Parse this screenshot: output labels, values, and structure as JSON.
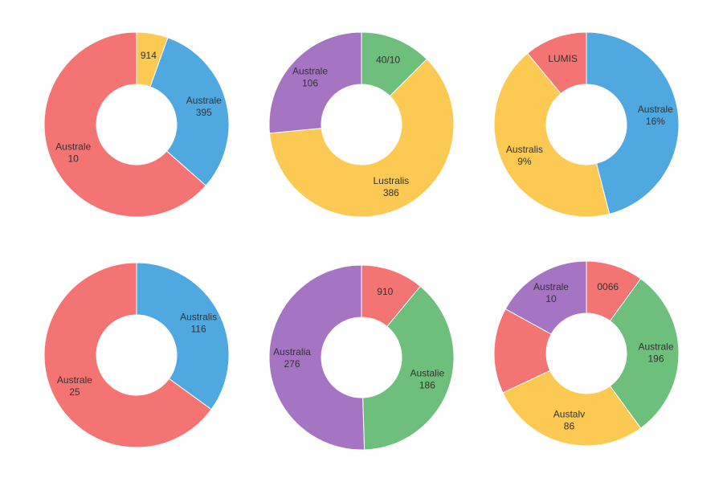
{
  "chart_data": [
    {
      "type": "donut",
      "values": [
        5.5,
        31,
        63.5
      ],
      "colors": [
        "#fcc953",
        "#4fa8e0",
        "#f47373"
      ],
      "labels": [
        [
          "914"
        ],
        [
          "Australe",
          "395"
        ],
        [
          "Australe",
          "10"
        ]
      ]
    },
    {
      "type": "donut",
      "values": [
        12.5,
        61,
        26.5
      ],
      "colors": [
        "#6dbf7b",
        "#fcc953",
        "#a574c2"
      ],
      "labels": [
        [
          "40/10"
        ],
        [
          "Lustralis",
          "386"
        ],
        [
          "Australe",
          "106"
        ]
      ]
    },
    {
      "type": "donut",
      "values": [
        46,
        43,
        11
      ],
      "colors": [
        "#4fa8e0",
        "#fcc953",
        "#f47373"
      ],
      "labels": [
        [
          "Australe",
          "16%"
        ],
        [
          "Australis",
          "9%"
        ],
        [
          "LUMIS"
        ]
      ]
    },
    {
      "type": "donut",
      "values": [
        35,
        65
      ],
      "colors": [
        "#4fa8e0",
        "#f47373"
      ],
      "labels": [
        [
          "Australis",
          "116"
        ],
        [
          "Australe",
          "25"
        ]
      ]
    },
    {
      "type": "donut",
      "values": [
        11,
        38.5,
        50.5
      ],
      "colors": [
        "#f47373",
        "#6dbf7b",
        "#a574c2"
      ],
      "labels": [
        [
          "910"
        ],
        [
          "Austalie",
          "186"
        ],
        [
          "Australia",
          "276"
        ]
      ]
    },
    {
      "type": "donut",
      "values": [
        10,
        30,
        28,
        15,
        17
      ],
      "colors": [
        "#f47373",
        "#6dbf7b",
        "#fcc953",
        "#f47373",
        "#a574c2"
      ],
      "labels": [
        [
          "0066"
        ],
        [
          "Australe",
          "196"
        ],
        [
          "Austalv",
          "86"
        ],
        null,
        [
          "Australe",
          "10"
        ]
      ]
    }
  ]
}
